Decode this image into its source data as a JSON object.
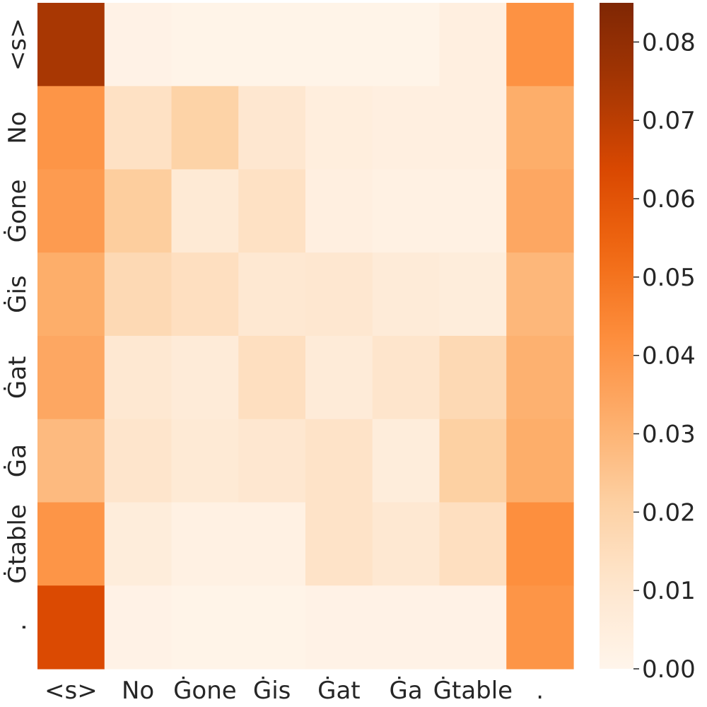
{
  "chart_data": {
    "type": "heatmap",
    "title": "",
    "xlabel": "",
    "ylabel": "",
    "x_labels": [
      "<s>",
      "No",
      "Ġone",
      "Ġis",
      "Ġat",
      "Ġa",
      "Ġtable",
      "."
    ],
    "y_labels": [
      "<s>",
      "No",
      "Ġone",
      "Ġis",
      "Ġat",
      "Ġa",
      "Ġtable",
      "."
    ],
    "values": [
      [
        0.074,
        0.002,
        0.001,
        0.001,
        0.001,
        0.001,
        0.004,
        0.041
      ],
      [
        0.04,
        0.013,
        0.02,
        0.01,
        0.005,
        0.004,
        0.004,
        0.032
      ],
      [
        0.038,
        0.022,
        0.008,
        0.013,
        0.004,
        0.003,
        0.003,
        0.034
      ],
      [
        0.032,
        0.017,
        0.014,
        0.009,
        0.01,
        0.007,
        0.006,
        0.029
      ],
      [
        0.034,
        0.009,
        0.007,
        0.014,
        0.007,
        0.011,
        0.017,
        0.031
      ],
      [
        0.028,
        0.011,
        0.008,
        0.01,
        0.012,
        0.006,
        0.021,
        0.032
      ],
      [
        0.04,
        0.006,
        0.003,
        0.003,
        0.012,
        0.009,
        0.014,
        0.042
      ],
      [
        0.063,
        0.002,
        0.001,
        0.001,
        0.002,
        0.002,
        0.002,
        0.04
      ]
    ],
    "colorbar": {
      "min": 0.0,
      "max": 0.085,
      "ticks": [
        "0.00",
        "0.01",
        "0.02",
        "0.03",
        "0.04",
        "0.05",
        "0.06",
        "0.07",
        "0.08"
      ],
      "colormap": "Oranges"
    },
    "grid": false,
    "legend": "colorbar-right"
  }
}
